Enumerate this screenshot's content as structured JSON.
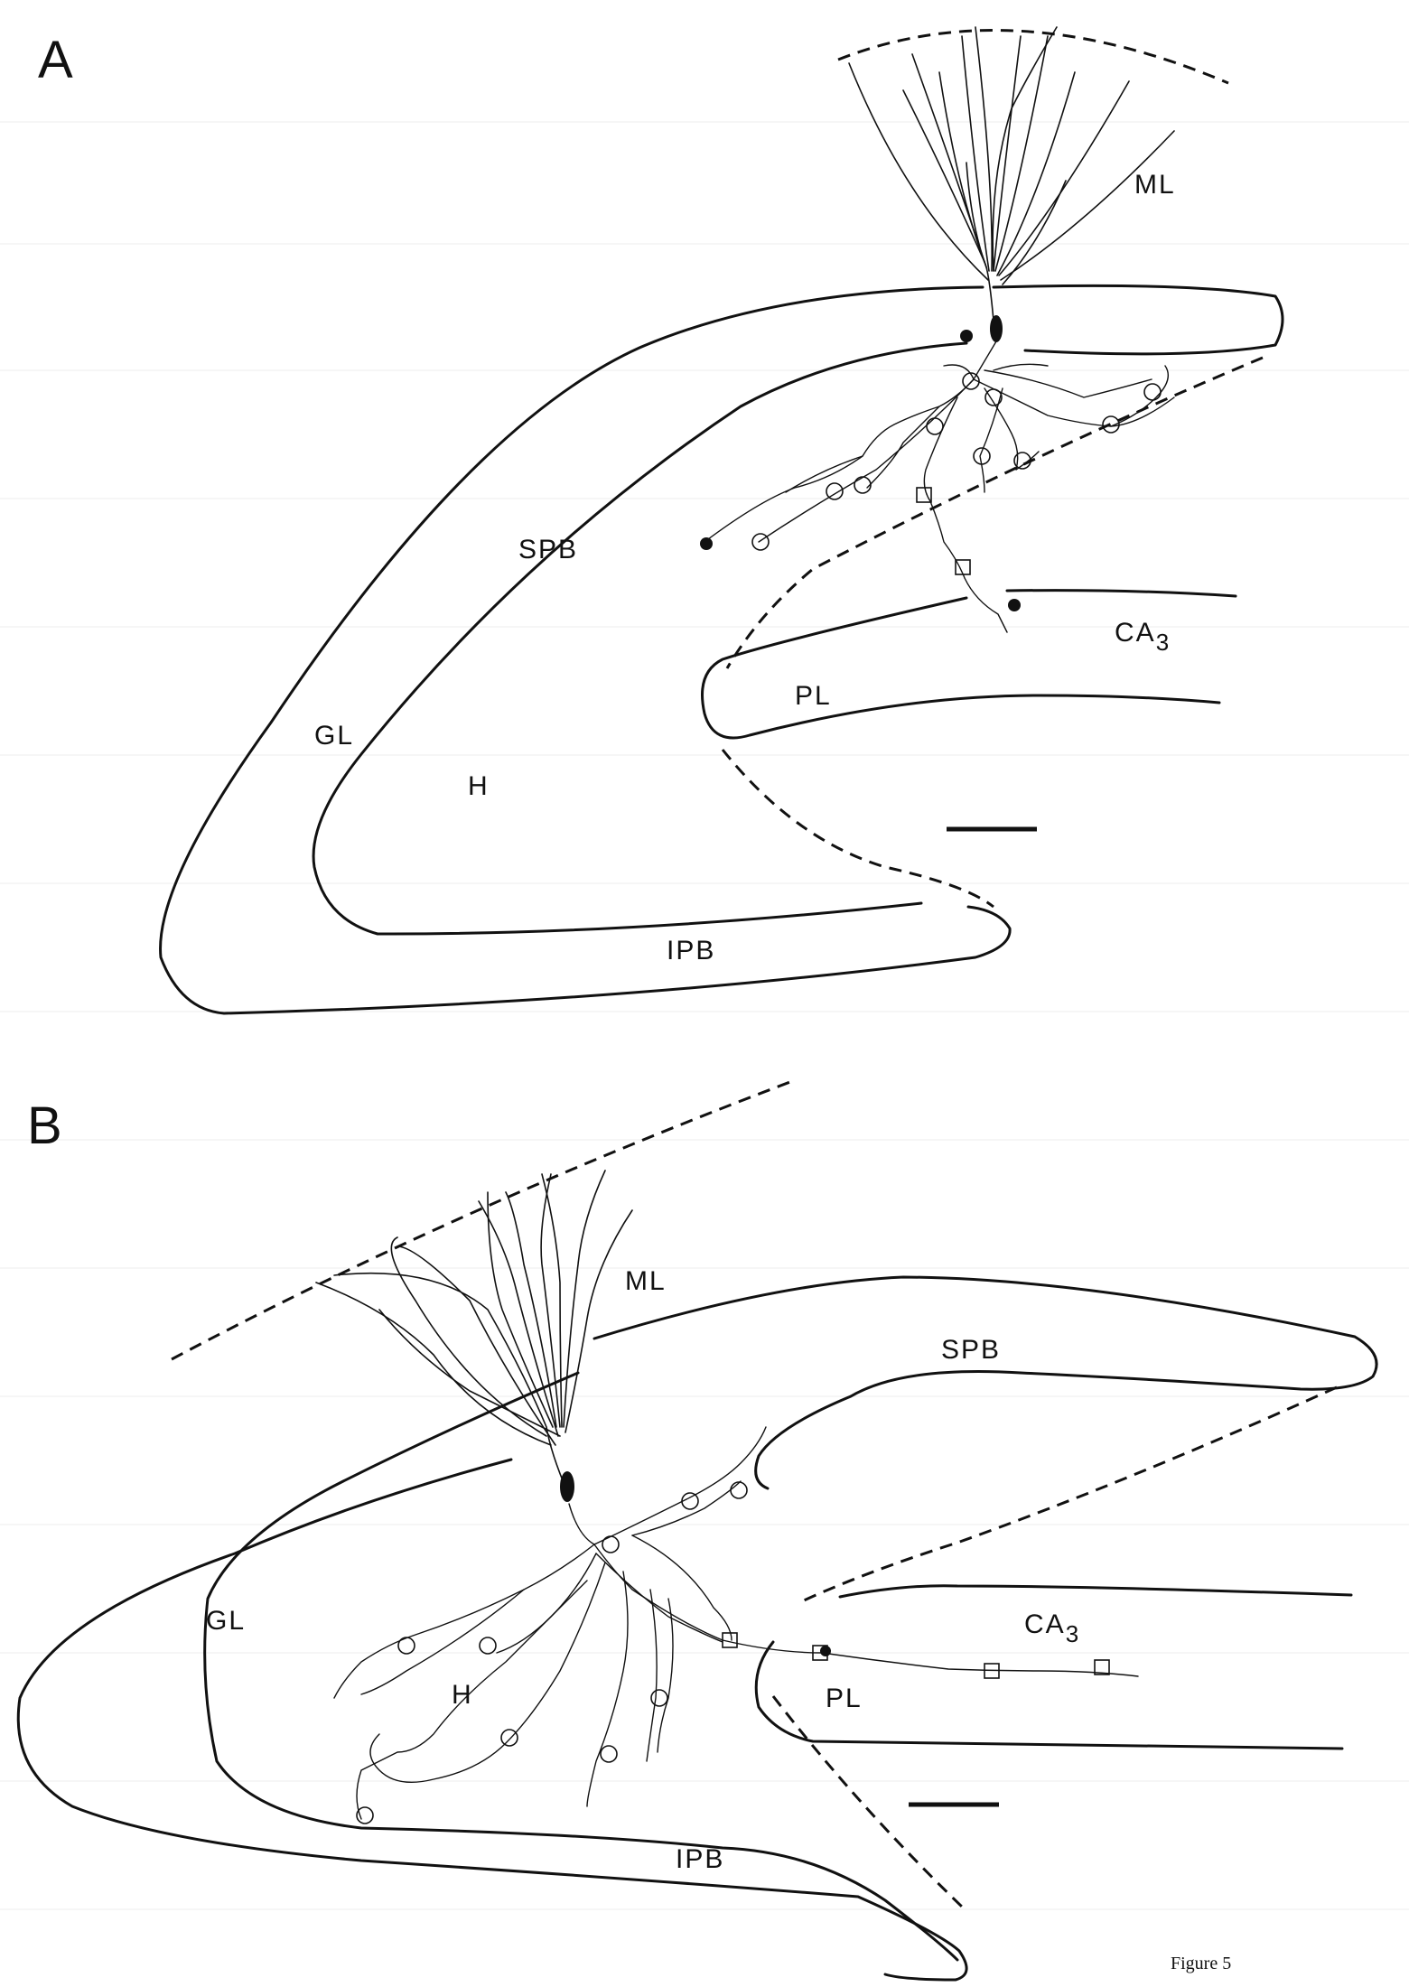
{
  "figure_caption": "Figure 5",
  "panels": [
    {
      "letter": "A",
      "labels": {
        "ml": "ML",
        "spb": "SPB",
        "gl": "GL",
        "h": "H",
        "ipb": "IPB",
        "pl": "PL",
        "ca3_main": "CA",
        "ca3_sub": "3"
      }
    },
    {
      "letter": "B",
      "labels": {
        "ml": "ML",
        "spb": "SPB",
        "gl": "GL",
        "h": "H",
        "ipb": "IPB",
        "pl": "PL",
        "ca3_main": "CA",
        "ca3_sub": "3"
      }
    }
  ]
}
